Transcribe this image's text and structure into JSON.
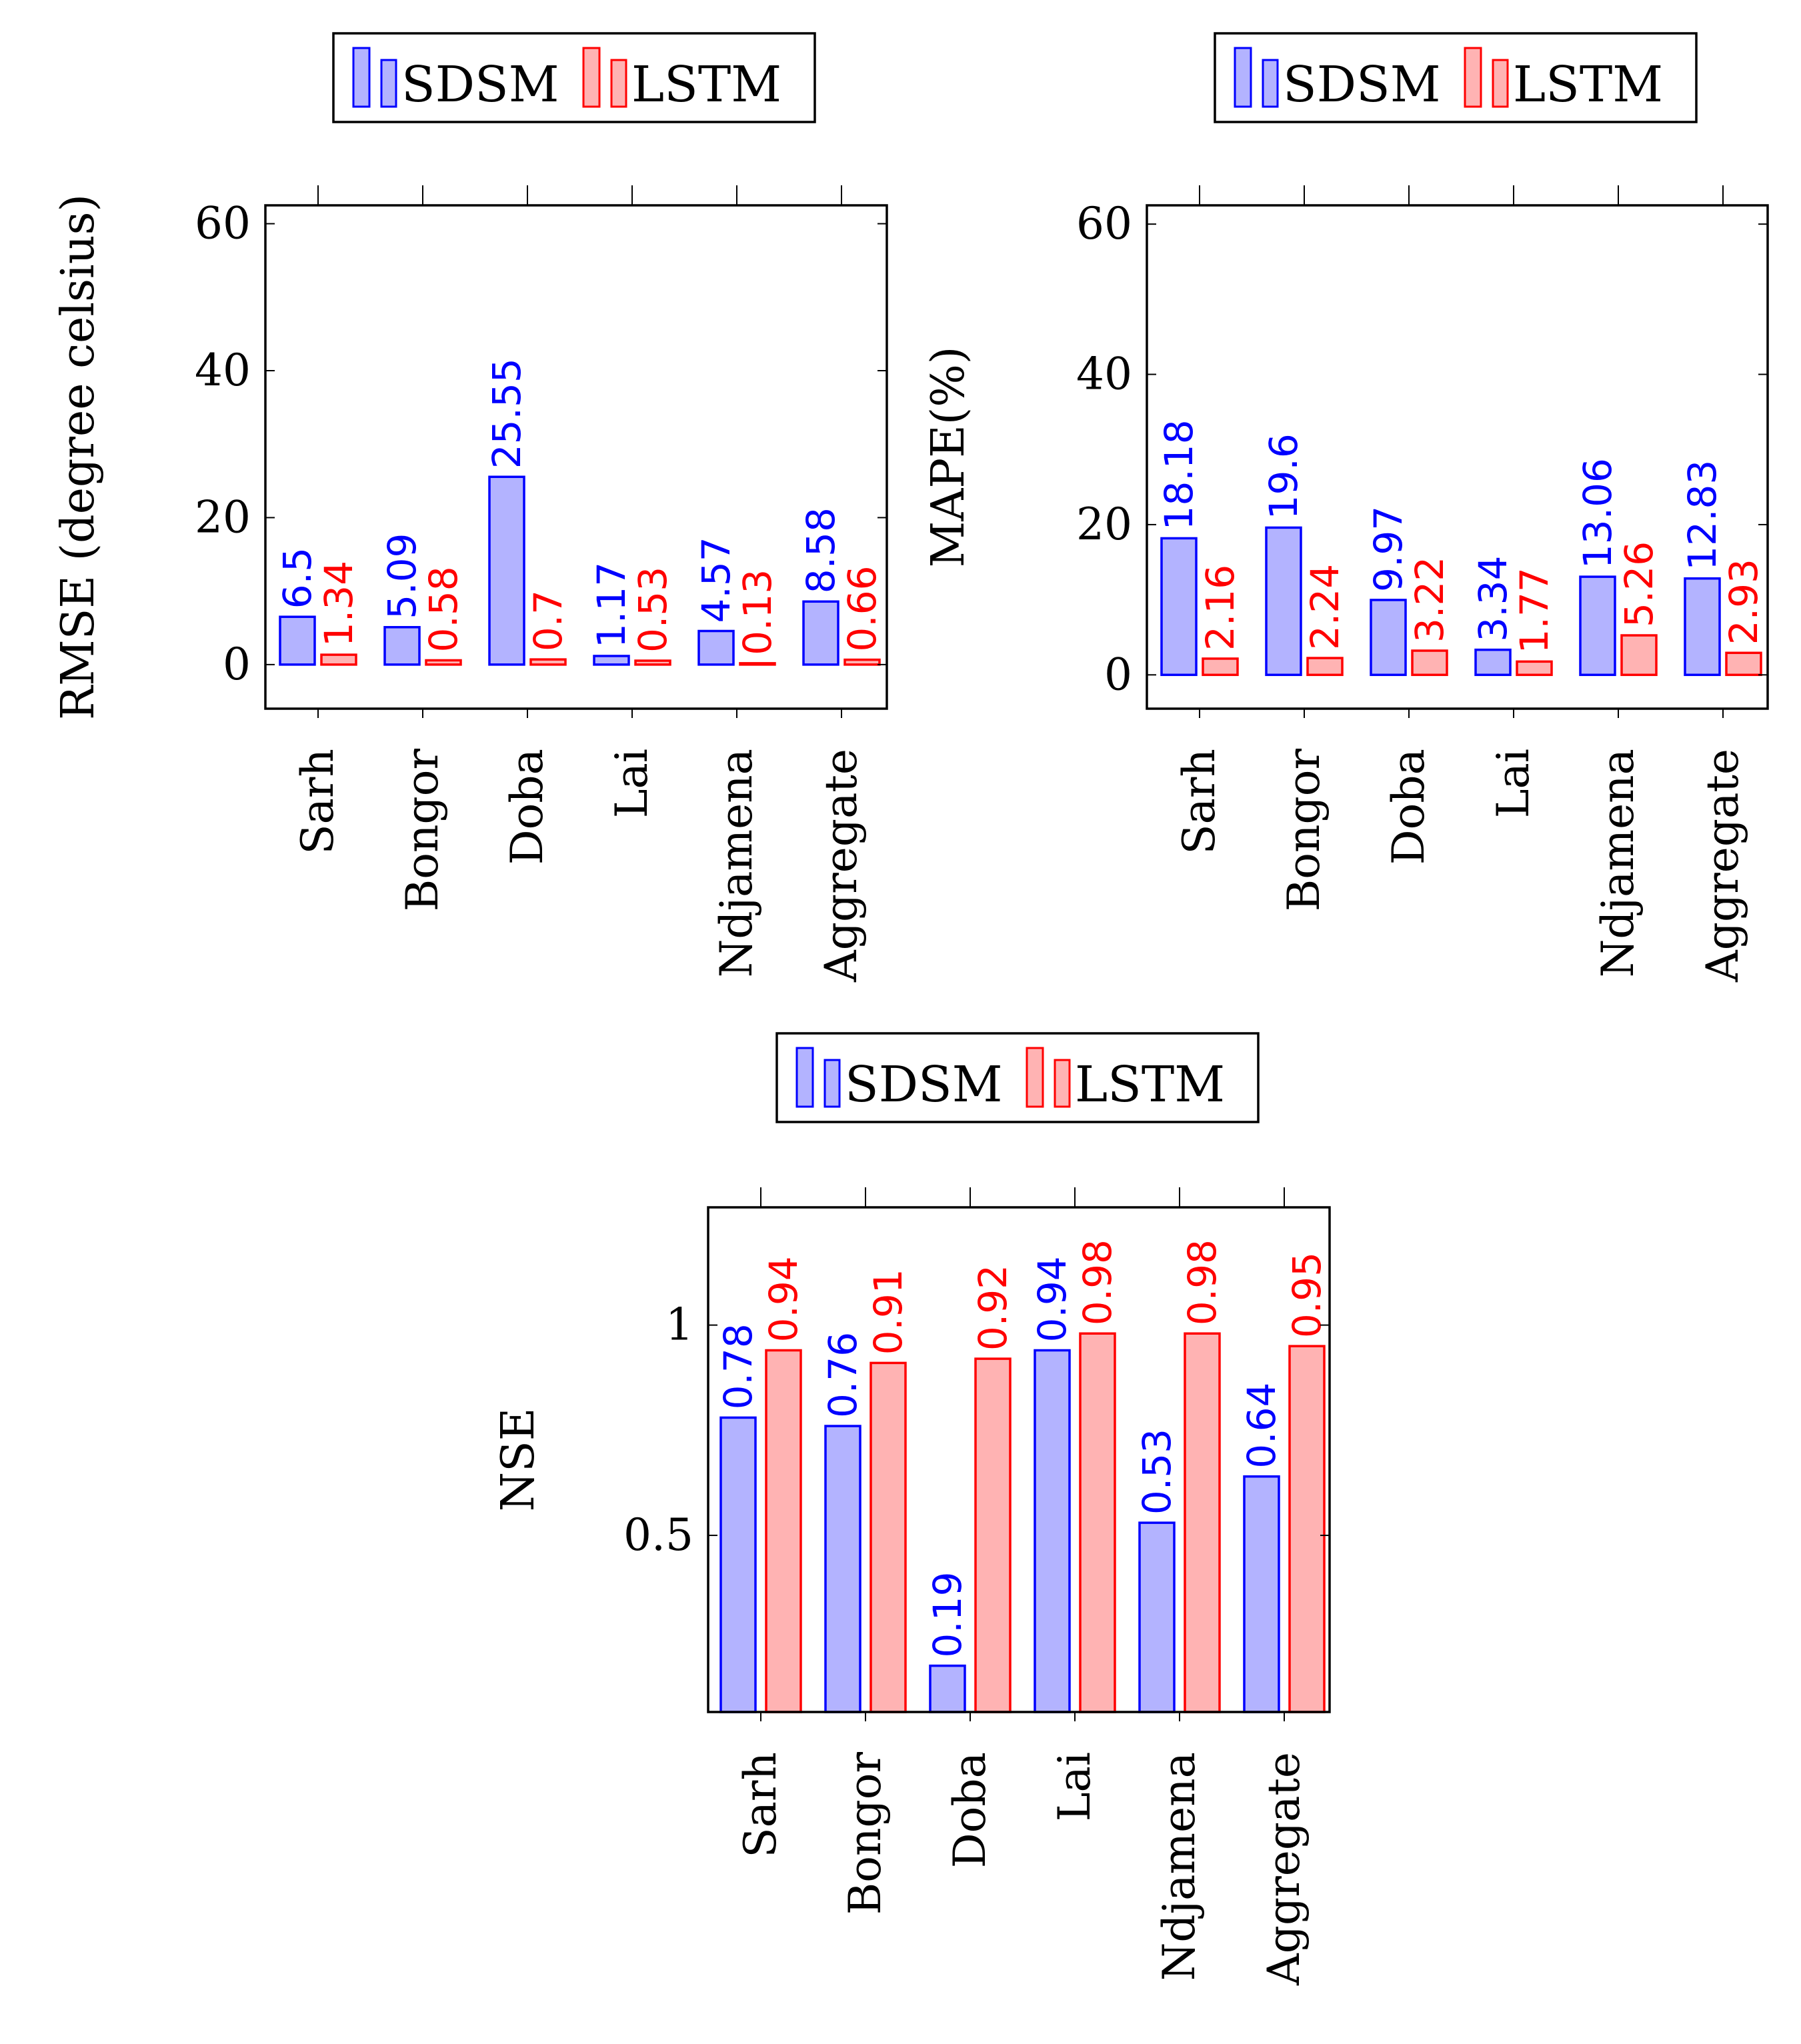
{
  "colors": {
    "sdsm_stroke": "#0000ff",
    "sdsm_fill": "#b3b3ff",
    "lstm_stroke": "#ff0000",
    "lstm_fill": "#ffb3b3",
    "axis": "#000000"
  },
  "chart_data": [
    {
      "type": "bar",
      "title": "",
      "xlabel": "",
      "ylabel": "RMSE (degree celsius)",
      "categories": [
        "Sarh",
        "Bongor",
        "Doba",
        "Lai",
        "Ndjamena",
        "Aggregate"
      ],
      "series": [
        {
          "name": "SDSM",
          "values": [
            6.5,
            5.09,
            25.55,
            1.17,
            4.57,
            8.58
          ],
          "value_labels": [
            "6.5",
            "5.09",
            "25.55",
            "1.17",
            "4.57",
            "8.58"
          ]
        },
        {
          "name": "LSTM",
          "values": [
            1.34,
            0.58,
            0.7,
            0.53,
            0.13,
            0.66
          ],
          "value_labels": [
            "1.34",
            "0.58",
            "0.7",
            "0.53",
            "0.13",
            "0.66"
          ]
        }
      ],
      "ylim": [
        -6,
        62.5
      ],
      "yticks": [
        0,
        20,
        40,
        60
      ],
      "ytick_labels": [
        "0",
        "20",
        "40",
        "60"
      ],
      "grid": false,
      "legend": "top"
    },
    {
      "type": "bar",
      "title": "",
      "xlabel": "",
      "ylabel": "MAPE(%)",
      "categories": [
        "Sarh",
        "Bongor",
        "Doba",
        "Lai",
        "Ndjamena",
        "Aggregate"
      ],
      "series": [
        {
          "name": "SDSM",
          "values": [
            18.18,
            19.6,
            9.97,
            3.34,
            13.06,
            12.83
          ],
          "value_labels": [
            "18.18",
            "19.6",
            "9.97",
            "3.34",
            "13.06",
            "12.83"
          ]
        },
        {
          "name": "LSTM",
          "values": [
            2.16,
            2.24,
            3.22,
            1.77,
            5.26,
            2.93
          ],
          "value_labels": [
            "2.16",
            "2.24",
            "3.22",
            "1.77",
            "5.26",
            "2.93"
          ]
        }
      ],
      "ylim": [
        -4.5,
        62.5
      ],
      "yticks": [
        0,
        20,
        40,
        60
      ],
      "ytick_labels": [
        "0",
        "20",
        "40",
        "60"
      ],
      "grid": false,
      "legend": "top"
    },
    {
      "type": "bar",
      "title": "",
      "xlabel": "",
      "ylabel": "NSE",
      "categories": [
        "Sarh",
        "Bongor",
        "Doba",
        "Lai",
        "Ndjamena",
        "Aggregate"
      ],
      "series": [
        {
          "name": "SDSM",
          "values": [
            0.78,
            0.76,
            0.19,
            0.94,
            0.53,
            0.64
          ],
          "value_labels": [
            "0.78",
            "0.76",
            "0.19",
            "0.94",
            "0.53",
            "0.64"
          ]
        },
        {
          "name": "LSTM",
          "values": [
            0.94,
            0.91,
            0.92,
            0.98,
            0.98,
            0.95
          ],
          "value_labels": [
            "0.94",
            "0.91",
            "0.92",
            "0.98",
            "0.98",
            "0.95"
          ]
        }
      ],
      "ylim": [
        0.08,
        1.28
      ],
      "yticks": [
        0.5,
        1
      ],
      "ytick_labels": [
        "0.5",
        "1"
      ],
      "grid": false,
      "legend": "top"
    }
  ]
}
